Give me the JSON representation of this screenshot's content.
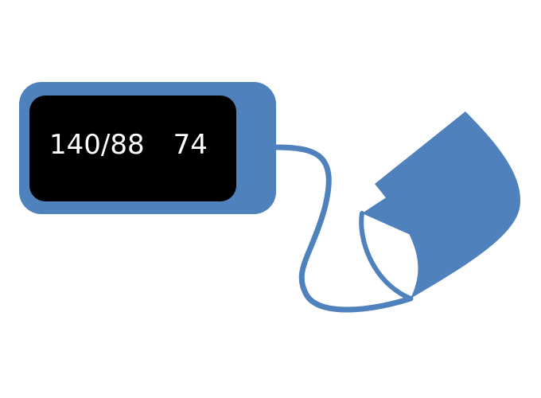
{
  "monitor": {
    "blood_pressure": "140/88",
    "pulse": "74"
  },
  "colors": {
    "device_blue": "#4f81bd",
    "screen_black": "#000000",
    "text_white": "#ffffff",
    "background": "#ffffff"
  }
}
